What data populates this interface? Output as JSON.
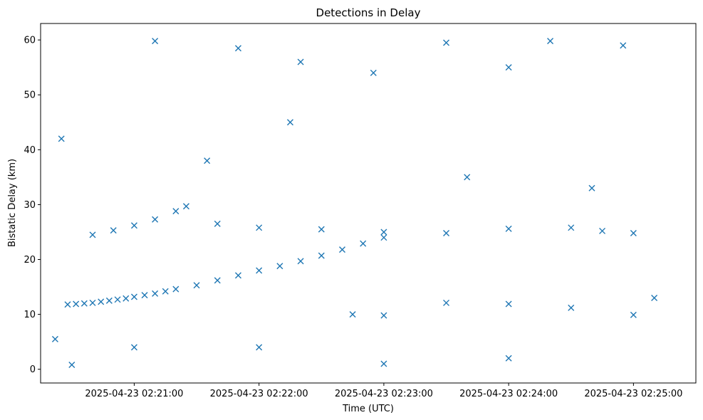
{
  "chart_data": {
    "type": "scatter",
    "title": "Detections in Delay",
    "xlabel": "Time (UTC)",
    "ylabel": "Bistatic Delay (km)",
    "marker": "x",
    "color": "#1f77b4",
    "grid": false,
    "xlim": [
      "2025-04-23 02:20:15",
      "2025-04-23 02:25:30"
    ],
    "ylim": [
      -2.5,
      63
    ],
    "x_ticks": [
      "2025-04-23 02:21:00",
      "2025-04-23 02:22:00",
      "2025-04-23 02:23:00",
      "2025-04-23 02:24:00",
      "2025-04-23 02:25:00"
    ],
    "y_ticks": [
      0,
      10,
      20,
      30,
      40,
      50,
      60
    ],
    "x_tick_labels": [
      "2025-04-23 02:21:00",
      "2025-04-23 02:22:00",
      "2025-04-23 02:23:00",
      "2025-04-23 02:24:00",
      "2025-04-23 02:25:00"
    ],
    "y_tick_labels": [
      "0",
      "10",
      "20",
      "30",
      "40",
      "50",
      "60"
    ],
    "series": [
      {
        "points": [
          [
            "2025-04-23 02:20:28",
            11.8
          ],
          [
            "2025-04-23 02:20:32",
            11.9
          ],
          [
            "2025-04-23 02:20:36",
            12.0
          ],
          [
            "2025-04-23 02:20:40",
            12.1
          ],
          [
            "2025-04-23 02:20:44",
            12.3
          ],
          [
            "2025-04-23 02:20:48",
            12.5
          ],
          [
            "2025-04-23 02:20:52",
            12.7
          ],
          [
            "2025-04-23 02:20:56",
            12.9
          ],
          [
            "2025-04-23 02:21:00",
            13.2
          ],
          [
            "2025-04-23 02:21:05",
            13.5
          ],
          [
            "2025-04-23 02:21:10",
            13.8
          ],
          [
            "2025-04-23 02:21:15",
            14.2
          ],
          [
            "2025-04-23 02:21:20",
            14.6
          ],
          [
            "2025-04-23 02:21:30",
            15.3
          ],
          [
            "2025-04-23 02:21:40",
            16.2
          ],
          [
            "2025-04-23 02:21:50",
            17.1
          ],
          [
            "2025-04-23 02:22:00",
            18.0
          ],
          [
            "2025-04-23 02:22:10",
            18.8
          ],
          [
            "2025-04-23 02:22:20",
            19.7
          ],
          [
            "2025-04-23 02:22:30",
            20.7
          ],
          [
            "2025-04-23 02:22:40",
            21.8
          ],
          [
            "2025-04-23 02:22:50",
            22.9
          ],
          [
            "2025-04-23 02:23:00",
            24.0
          ],
          [
            "2025-04-23 02:20:40",
            24.5
          ],
          [
            "2025-04-23 02:20:50",
            25.3
          ],
          [
            "2025-04-23 02:21:00",
            26.2
          ],
          [
            "2025-04-23 02:21:10",
            27.3
          ],
          [
            "2025-04-23 02:21:20",
            28.8
          ],
          [
            "2025-04-23 02:21:25",
            29.7
          ],
          [
            "2025-04-23 02:21:40",
            26.5
          ],
          [
            "2025-04-23 02:22:00",
            25.8
          ],
          [
            "2025-04-23 02:22:30",
            25.5
          ],
          [
            "2025-04-23 02:23:00",
            25.0
          ],
          [
            "2025-04-23 02:23:30",
            24.8
          ],
          [
            "2025-04-23 02:24:00",
            25.6
          ],
          [
            "2025-04-23 02:24:30",
            25.8
          ],
          [
            "2025-04-23 02:24:45",
            25.2
          ],
          [
            "2025-04-23 02:25:00",
            24.8
          ],
          [
            "2025-04-23 02:22:45",
            10.0
          ],
          [
            "2025-04-23 02:23:00",
            9.8
          ],
          [
            "2025-04-23 02:23:30",
            12.1
          ],
          [
            "2025-04-23 02:24:00",
            11.9
          ],
          [
            "2025-04-23 02:24:30",
            11.2
          ],
          [
            "2025-04-23 02:25:00",
            9.9
          ],
          [
            "2025-04-23 02:20:22",
            5.5
          ],
          [
            "2025-04-23 02:20:30",
            0.8
          ],
          [
            "2025-04-23 02:21:10",
            59.8
          ],
          [
            "2025-04-23 02:21:50",
            58.5
          ],
          [
            "2025-04-23 02:22:20",
            56.0
          ],
          [
            "2025-04-23 02:22:55",
            54.0
          ],
          [
            "2025-04-23 02:23:30",
            59.5
          ],
          [
            "2025-04-23 02:24:00",
            55.0
          ],
          [
            "2025-04-23 02:24:20",
            59.8
          ],
          [
            "2025-04-23 02:24:55",
            59.0
          ],
          [
            "2025-04-23 02:20:25",
            42.0
          ],
          [
            "2025-04-23 02:21:35",
            38.0
          ],
          [
            "2025-04-23 02:22:15",
            45.0
          ],
          [
            "2025-04-23 02:23:40",
            35.0
          ],
          [
            "2025-04-23 02:24:40",
            33.0
          ],
          [
            "2025-04-23 02:21:00",
            4.0
          ],
          [
            "2025-04-23 02:22:00",
            4.0
          ],
          [
            "2025-04-23 02:23:00",
            1.0
          ],
          [
            "2025-04-23 02:24:00",
            2.0
          ],
          [
            "2025-04-23 02:25:10",
            13.0
          ]
        ]
      }
    ]
  }
}
